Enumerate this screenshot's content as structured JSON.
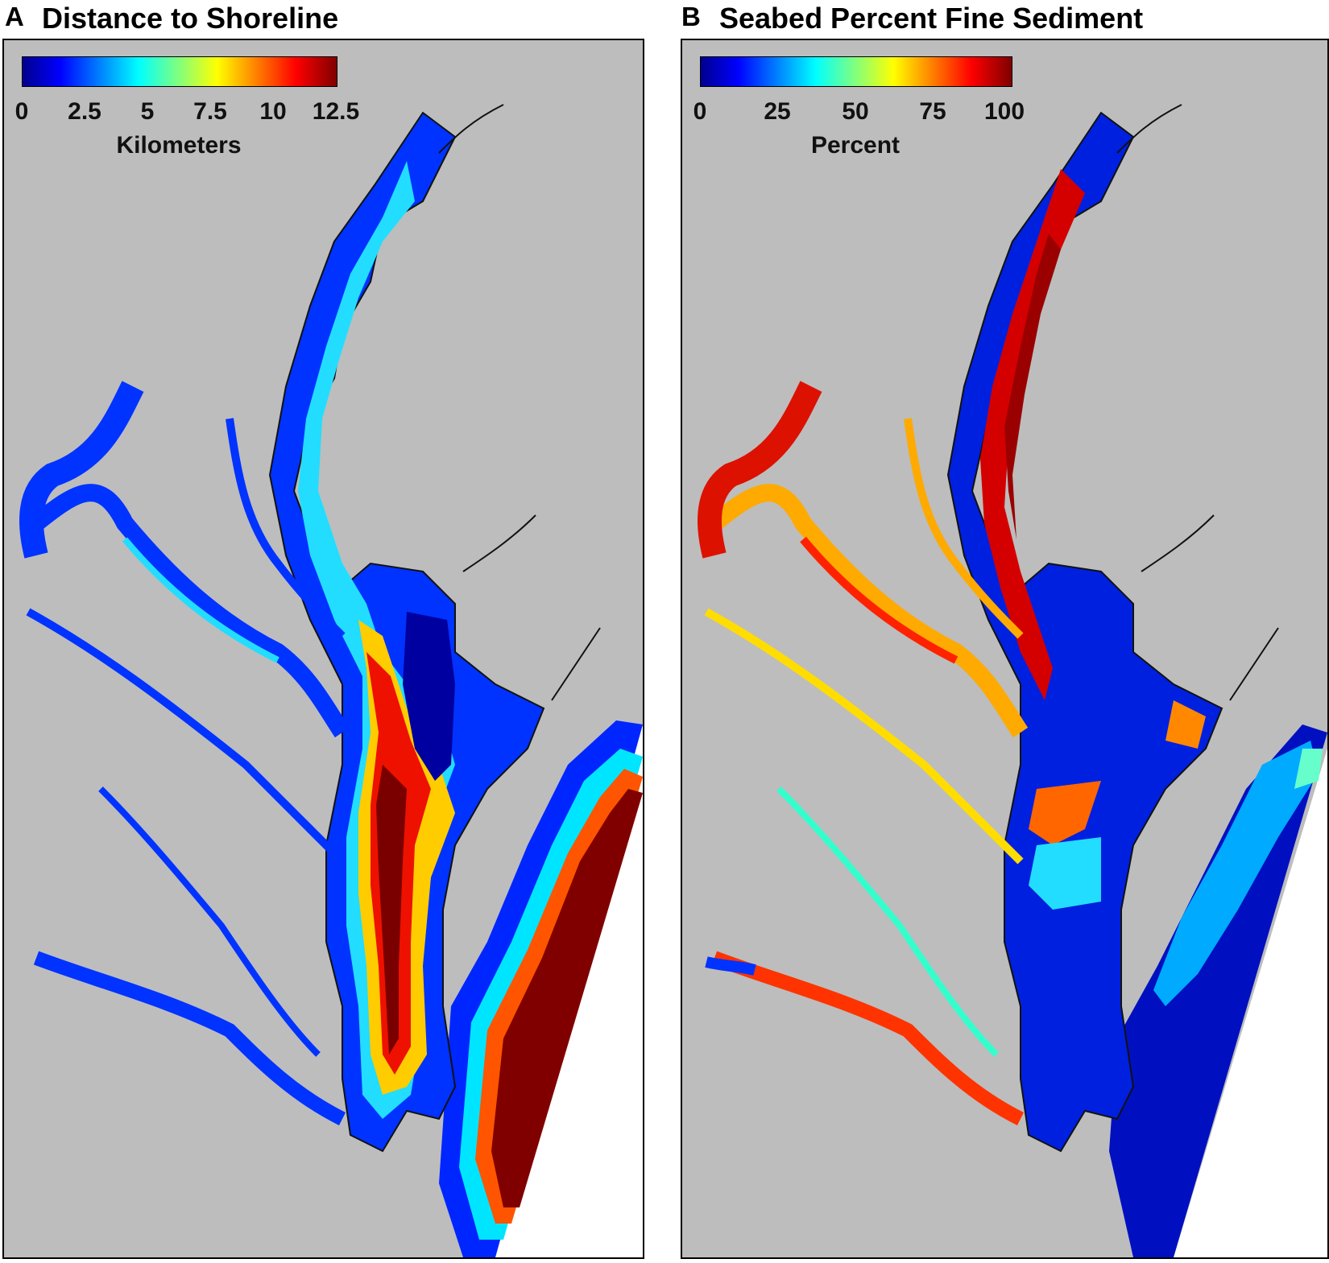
{
  "panels": [
    {
      "label": "A",
      "title": "Distance to Shoreline",
      "colorbar": {
        "colormap": "jet",
        "min": 0,
        "max": 12.5,
        "ticks": [
          "0",
          "2.5",
          "5",
          "7.5",
          "10",
          "12.5"
        ],
        "unit": "Kilometers"
      }
    },
    {
      "label": "B",
      "title": "Seabed Percent Fine Sediment",
      "colorbar": {
        "colormap": "jet",
        "min": 0,
        "max": 100,
        "ticks": [
          "0",
          "25",
          "50",
          "75",
          "100"
        ],
        "unit": "Percent"
      }
    }
  ],
  "colors": {
    "land": "#bdbdbd",
    "jet_blue": "#00008f",
    "jet_cyan": "#00ffff",
    "jet_yellow": "#ffff00",
    "jet_red": "#ff0000",
    "jet_darkred": "#800000",
    "outside": "#ffffff"
  }
}
